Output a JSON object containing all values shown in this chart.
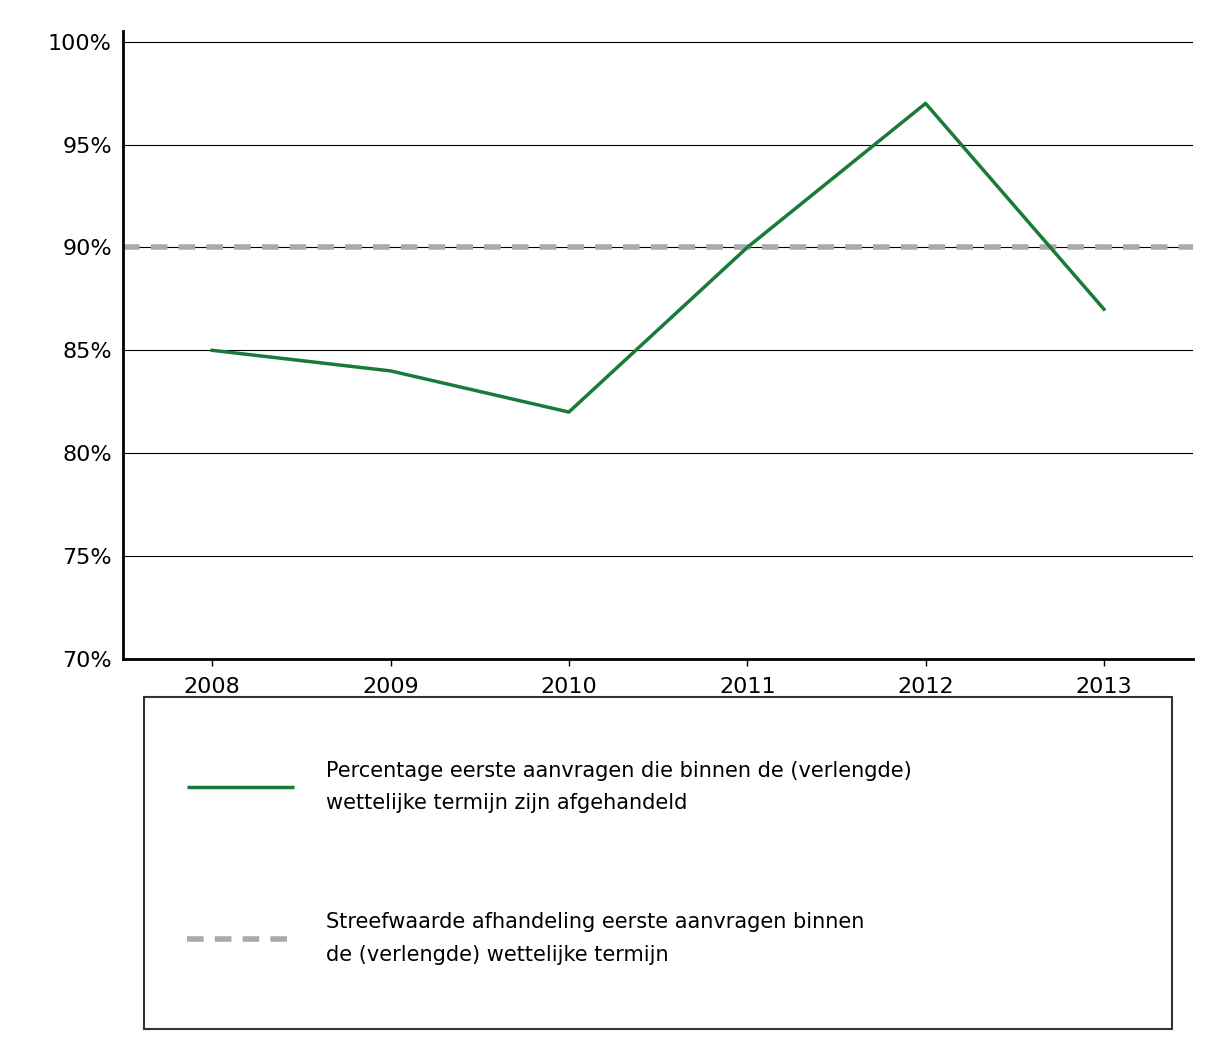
{
  "years": [
    2008,
    2009,
    2010,
    2011,
    2012,
    2013
  ],
  "green_values": [
    0.85,
    0.84,
    0.82,
    0.9,
    0.97,
    0.87
  ],
  "target_value": 0.9,
  "green_color": "#1a7a3a",
  "target_color": "#aaaaaa",
  "ylim": [
    0.7,
    1.005
  ],
  "yticks": [
    0.7,
    0.75,
    0.8,
    0.85,
    0.9,
    0.95,
    1.0
  ],
  "ytick_labels": [
    "70%",
    "75%",
    "80%",
    "85%",
    "90%",
    "95%",
    "100%"
  ],
  "xlim": [
    2007.5,
    2013.5
  ],
  "xticks": [
    2008,
    2009,
    2010,
    2011,
    2012,
    2013
  ],
  "background_color": "#ffffff",
  "grid_color": "#000000",
  "legend_line1": "Percentage eerste aanvragen die binnen de (verlengde)\nwettelijke termijn zijn afgehandeld",
  "legend_line2": "Streefwaarde afhandeling eerste aanvragen binnen\nde (verlengde) wettelijke termijn",
  "line_width": 2.5,
  "font_size": 16,
  "legend_font_size": 15
}
